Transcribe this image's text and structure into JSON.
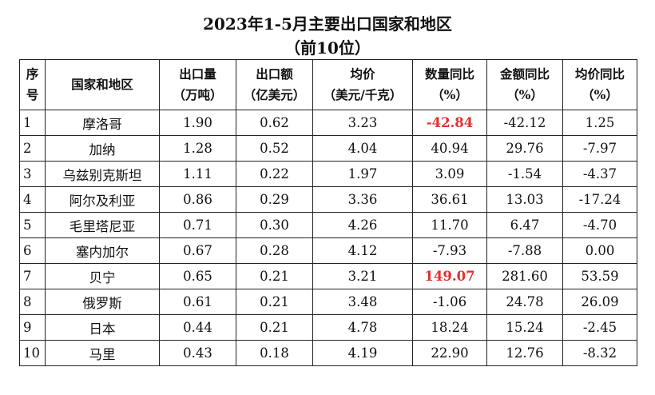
{
  "title_line1": "2023年1-5月主要出口国家和地区",
  "title_line2": "（前10位）",
  "headers": [
    {
      "l1": "序",
      "l2": "号"
    },
    {
      "l1": "国家和地区",
      "l2": ""
    },
    {
      "l1": "出口量",
      "l2": "（万吨）"
    },
    {
      "l1": "出口额",
      "l2": "（亿美元）"
    },
    {
      "l1": "均价",
      "l2": "（美元/千克）"
    },
    {
      "l1": "数量同比",
      "l2": "（%）"
    },
    {
      "l1": "金额同比",
      "l2": "（%）"
    },
    {
      "l1": "均价同比",
      "l2": "（%）"
    }
  ],
  "rows": [
    {
      "no": "1",
      "country": "摩洛哥",
      "volume": "1.90",
      "value": "0.62",
      "price": "3.23",
      "qty_yoy": "-42.84",
      "amt_yoy": "-42.12",
      "price_yoy": "1.25"
    },
    {
      "no": "2",
      "country": "加纳",
      "volume": "1.28",
      "value": "0.52",
      "price": "4.04",
      "qty_yoy": "40.94",
      "amt_yoy": "29.76",
      "price_yoy": "-7.97"
    },
    {
      "no": "3",
      "country": "乌兹别克斯坦",
      "volume": "1.11",
      "value": "0.22",
      "price": "1.97",
      "qty_yoy": "3.09",
      "amt_yoy": "-1.54",
      "price_yoy": "-4.37"
    },
    {
      "no": "4",
      "country": "阿尔及利亚",
      "volume": "0.86",
      "value": "0.29",
      "price": "3.36",
      "qty_yoy": "36.61",
      "amt_yoy": "13.03",
      "price_yoy": "-17.24"
    },
    {
      "no": "5",
      "country": "毛里塔尼亚",
      "volume": "0.71",
      "value": "0.30",
      "price": "4.26",
      "qty_yoy": "11.70",
      "amt_yoy": "6.47",
      "price_yoy": "-4.70"
    },
    {
      "no": "6",
      "country": "塞内加尔",
      "volume": "0.67",
      "value": "0.28",
      "price": "4.12",
      "qty_yoy": "-7.93",
      "amt_yoy": "-7.88",
      "price_yoy": "0.00"
    },
    {
      "no": "7",
      "country": "贝宁",
      "volume": "0.65",
      "value": "0.21",
      "price": "3.21",
      "qty_yoy": "149.07",
      "amt_yoy": "281.60",
      "price_yoy": "53.59"
    },
    {
      "no": "8",
      "country": "俄罗斯",
      "volume": "0.61",
      "value": "0.21",
      "price": "3.48",
      "qty_yoy": "-1.06",
      "amt_yoy": "24.78",
      "price_yoy": "26.09"
    },
    {
      "no": "9",
      "country": "日本",
      "volume": "0.44",
      "value": "0.21",
      "price": "4.78",
      "qty_yoy": "18.24",
      "amt_yoy": "15.24",
      "price_yoy": "-2.45"
    },
    {
      "no": "10",
      "country": "马里",
      "volume": "0.43",
      "value": "0.18",
      "price": "4.19",
      "qty_yoy": "22.90",
      "amt_yoy": "12.76",
      "price_yoy": "-8.32"
    }
  ],
  "highlight_color": "#e03030",
  "highlighted_cells": [
    {
      "row": 0,
      "col": "qty_yoy"
    },
    {
      "row": 6,
      "col": "qty_yoy"
    }
  ]
}
